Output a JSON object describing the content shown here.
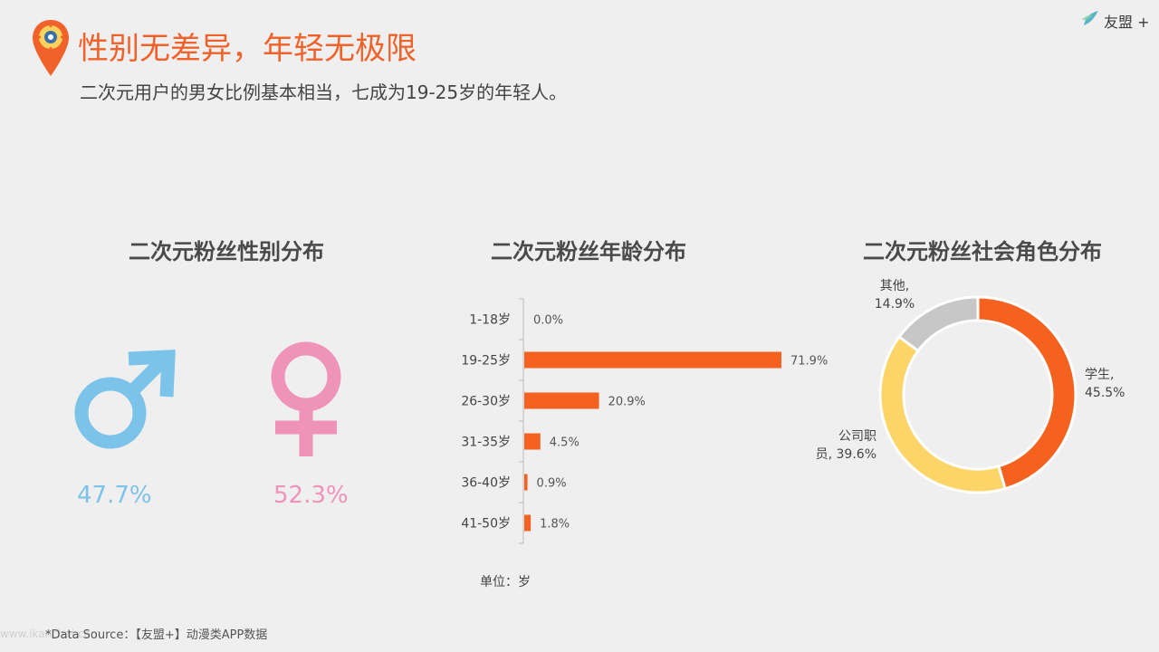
{
  "header": {
    "title": "性别无差异，年轻无极限",
    "subtitle": "二次元用户的男女比例基本相当，七成为19-25岁的年轻人。",
    "brand": "友盟 +",
    "pin_icon": "location-pin-icon",
    "accent_color": "#f0622a"
  },
  "gender": {
    "title": "二次元粉丝性别分布",
    "male_pct": "47.7%",
    "female_pct": "52.3%",
    "male_color": "#7cc3ea",
    "female_color": "#ef93b9"
  },
  "age": {
    "title": "二次元粉丝年龄分布",
    "unit": "单位：岁"
  },
  "role": {
    "title": "二次元粉丝社会角色分布"
  },
  "footer": {
    "source": "*Data Source：【友盟+】动漫类APP数据",
    "watermark": "www.ikanchai.com"
  },
  "chart_data": [
    {
      "type": "bar",
      "orientation": "horizontal",
      "title": "二次元粉丝年龄分布",
      "categories": [
        "1-18岁",
        "19-25岁",
        "26-30岁",
        "31-35岁",
        "36-40岁",
        "41-50岁"
      ],
      "values": [
        0.0,
        71.9,
        20.9,
        4.5,
        0.9,
        1.8
      ],
      "value_labels": [
        "0.0%",
        "71.9%",
        "20.9%",
        "4.5%",
        "0.9%",
        "1.8%"
      ],
      "xlim": [
        0,
        80
      ],
      "color": "#f5611f",
      "grid": false
    },
    {
      "type": "pie",
      "style": "donut",
      "title": "二次元粉丝社会角色分布",
      "slices": [
        {
          "label_line1": "学生,",
          "label_line2": "45.5%",
          "value": 45.5,
          "color": "#f5611f"
        },
        {
          "label_line1": "公司职",
          "label_line2": "员, 39.6%",
          "value": 39.6,
          "color": "#fcd468"
        },
        {
          "label_line1": "其他,",
          "label_line2": "14.9%",
          "value": 14.9,
          "color": "#c7c7c7"
        }
      ]
    }
  ]
}
